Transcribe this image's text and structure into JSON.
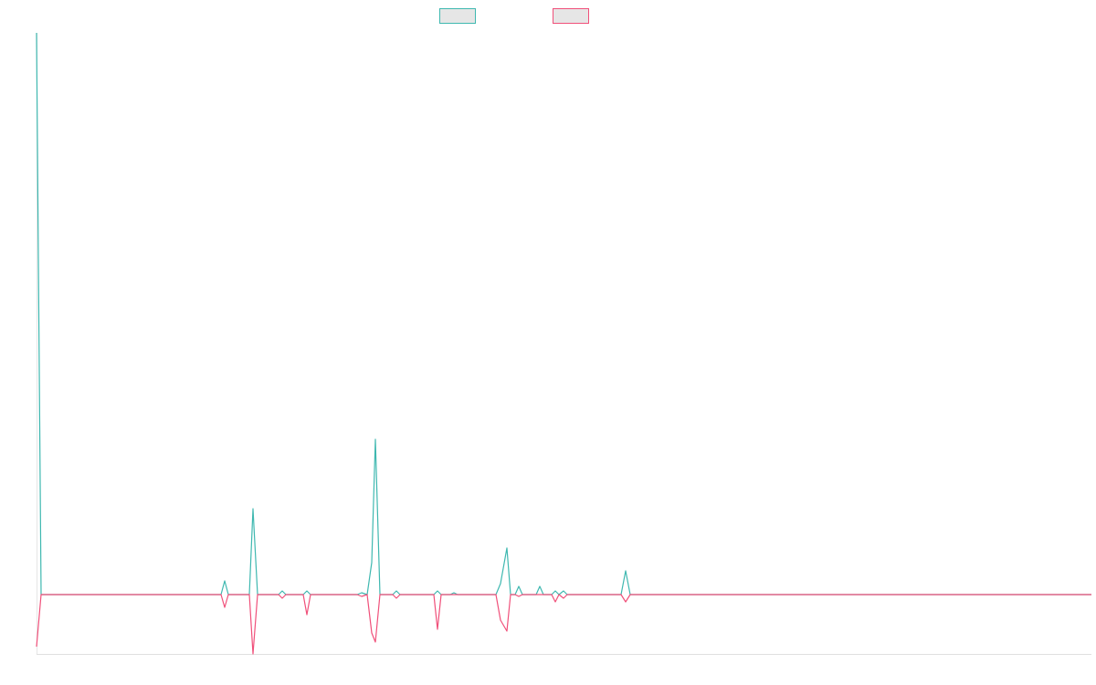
{
  "chart_data": {
    "type": "line",
    "x": [
      0,
      5,
      202,
      206,
      210,
      233,
      237,
      242,
      265,
      269,
      273,
      292,
      296,
      300,
      351,
      356,
      362,
      367,
      371,
      376,
      390,
      394,
      398,
      435,
      439,
      443,
      453,
      457,
      461,
      503,
      508,
      515,
      519,
      524,
      528,
      532,
      547,
      551,
      555,
      564,
      568,
      572,
      577,
      581,
      640,
      645,
      650,
      1155
    ],
    "series": [
      {
        "color": "#3fb8b0",
        "values": [
          615,
          0,
          0,
          15,
          0,
          0,
          94,
          0,
          0,
          4,
          0,
          0,
          4,
          0,
          0,
          2,
          0,
          35,
          170,
          0,
          0,
          4,
          0,
          0,
          4,
          0,
          0,
          2,
          0,
          0,
          12,
          51,
          0,
          0,
          9,
          0,
          0,
          9,
          0,
          0,
          4,
          0,
          4,
          0,
          0,
          26,
          0,
          0
        ]
      },
      {
        "color": "#f0507a",
        "values": [
          -57,
          0,
          0,
          -14,
          0,
          0,
          -65,
          0,
          0,
          -4,
          0,
          0,
          -22,
          0,
          0,
          -2,
          0,
          -42,
          -52,
          0,
          0,
          -4,
          0,
          0,
          -38,
          0,
          0,
          0,
          0,
          0,
          -28,
          -40,
          0,
          0,
          -2,
          0,
          0,
          0,
          0,
          0,
          -8,
          0,
          -4,
          0,
          0,
          -8,
          0,
          0
        ]
      }
    ],
    "xlim": [
      0,
      1155
    ],
    "ylim": [
      -65,
      615
    ]
  }
}
